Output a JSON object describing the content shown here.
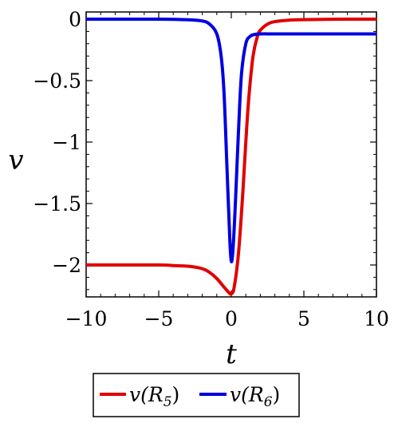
{
  "chart_data": {
    "type": "line",
    "xlabel": "t",
    "ylabel": "v",
    "xlim": [
      -10,
      10
    ],
    "ylim": [
      -2.25,
      0.05
    ],
    "x_ticks": [
      -10,
      -5,
      0,
      5,
      10
    ],
    "x_tick_labels": [
      "−10",
      "−5",
      "0",
      "5",
      "10"
    ],
    "y_ticks": [
      0,
      -0.5,
      -1,
      -1.5,
      -2
    ],
    "y_tick_labels": [
      "0",
      "−0.5",
      "−1",
      "−1.5",
      "−2"
    ],
    "grid": false,
    "legend_position": "bottom",
    "series": [
      {
        "name": "v(R5)",
        "legend_base": "v(R",
        "legend_sub": "5",
        "legend_close": ")",
        "color": "#e00000",
        "x": [
          -10,
          -5,
          -4,
          -3,
          -2,
          -1.5,
          -1,
          -0.5,
          -0.2,
          0,
          0.2,
          0.5,
          0.8,
          1,
          1.2,
          1.5,
          1.8,
          2,
          2.5,
          3,
          4,
          5,
          7,
          10
        ],
        "y": [
          -2.0,
          -2.0,
          -2.005,
          -2.01,
          -2.03,
          -2.06,
          -2.11,
          -2.18,
          -2.22,
          -2.235,
          -2.18,
          -1.9,
          -1.4,
          -1.0,
          -0.65,
          -0.3,
          -0.14,
          -0.09,
          -0.04,
          -0.02,
          -0.008,
          -0.004,
          -0.001,
          0.0
        ]
      },
      {
        "name": "v(R6)",
        "legend_base": "v(R",
        "legend_sub": "6",
        "legend_close": ")",
        "color": "#0000e0",
        "x": [
          -10,
          -5,
          -3,
          -2,
          -1.5,
          -1,
          -0.7,
          -0.5,
          -0.3,
          -0.1,
          0,
          0.1,
          0.2,
          0.3,
          0.5,
          0.7,
          1,
          1.3,
          1.6,
          2,
          3,
          5,
          10
        ],
        "y": [
          0.0,
          0.0,
          -0.005,
          -0.015,
          -0.04,
          -0.12,
          -0.3,
          -0.6,
          -1.2,
          -1.8,
          -1.97,
          -1.9,
          -1.7,
          -1.45,
          -0.9,
          -0.45,
          -0.2,
          -0.14,
          -0.125,
          -0.12,
          -0.12,
          -0.12,
          -0.12
        ]
      }
    ]
  }
}
